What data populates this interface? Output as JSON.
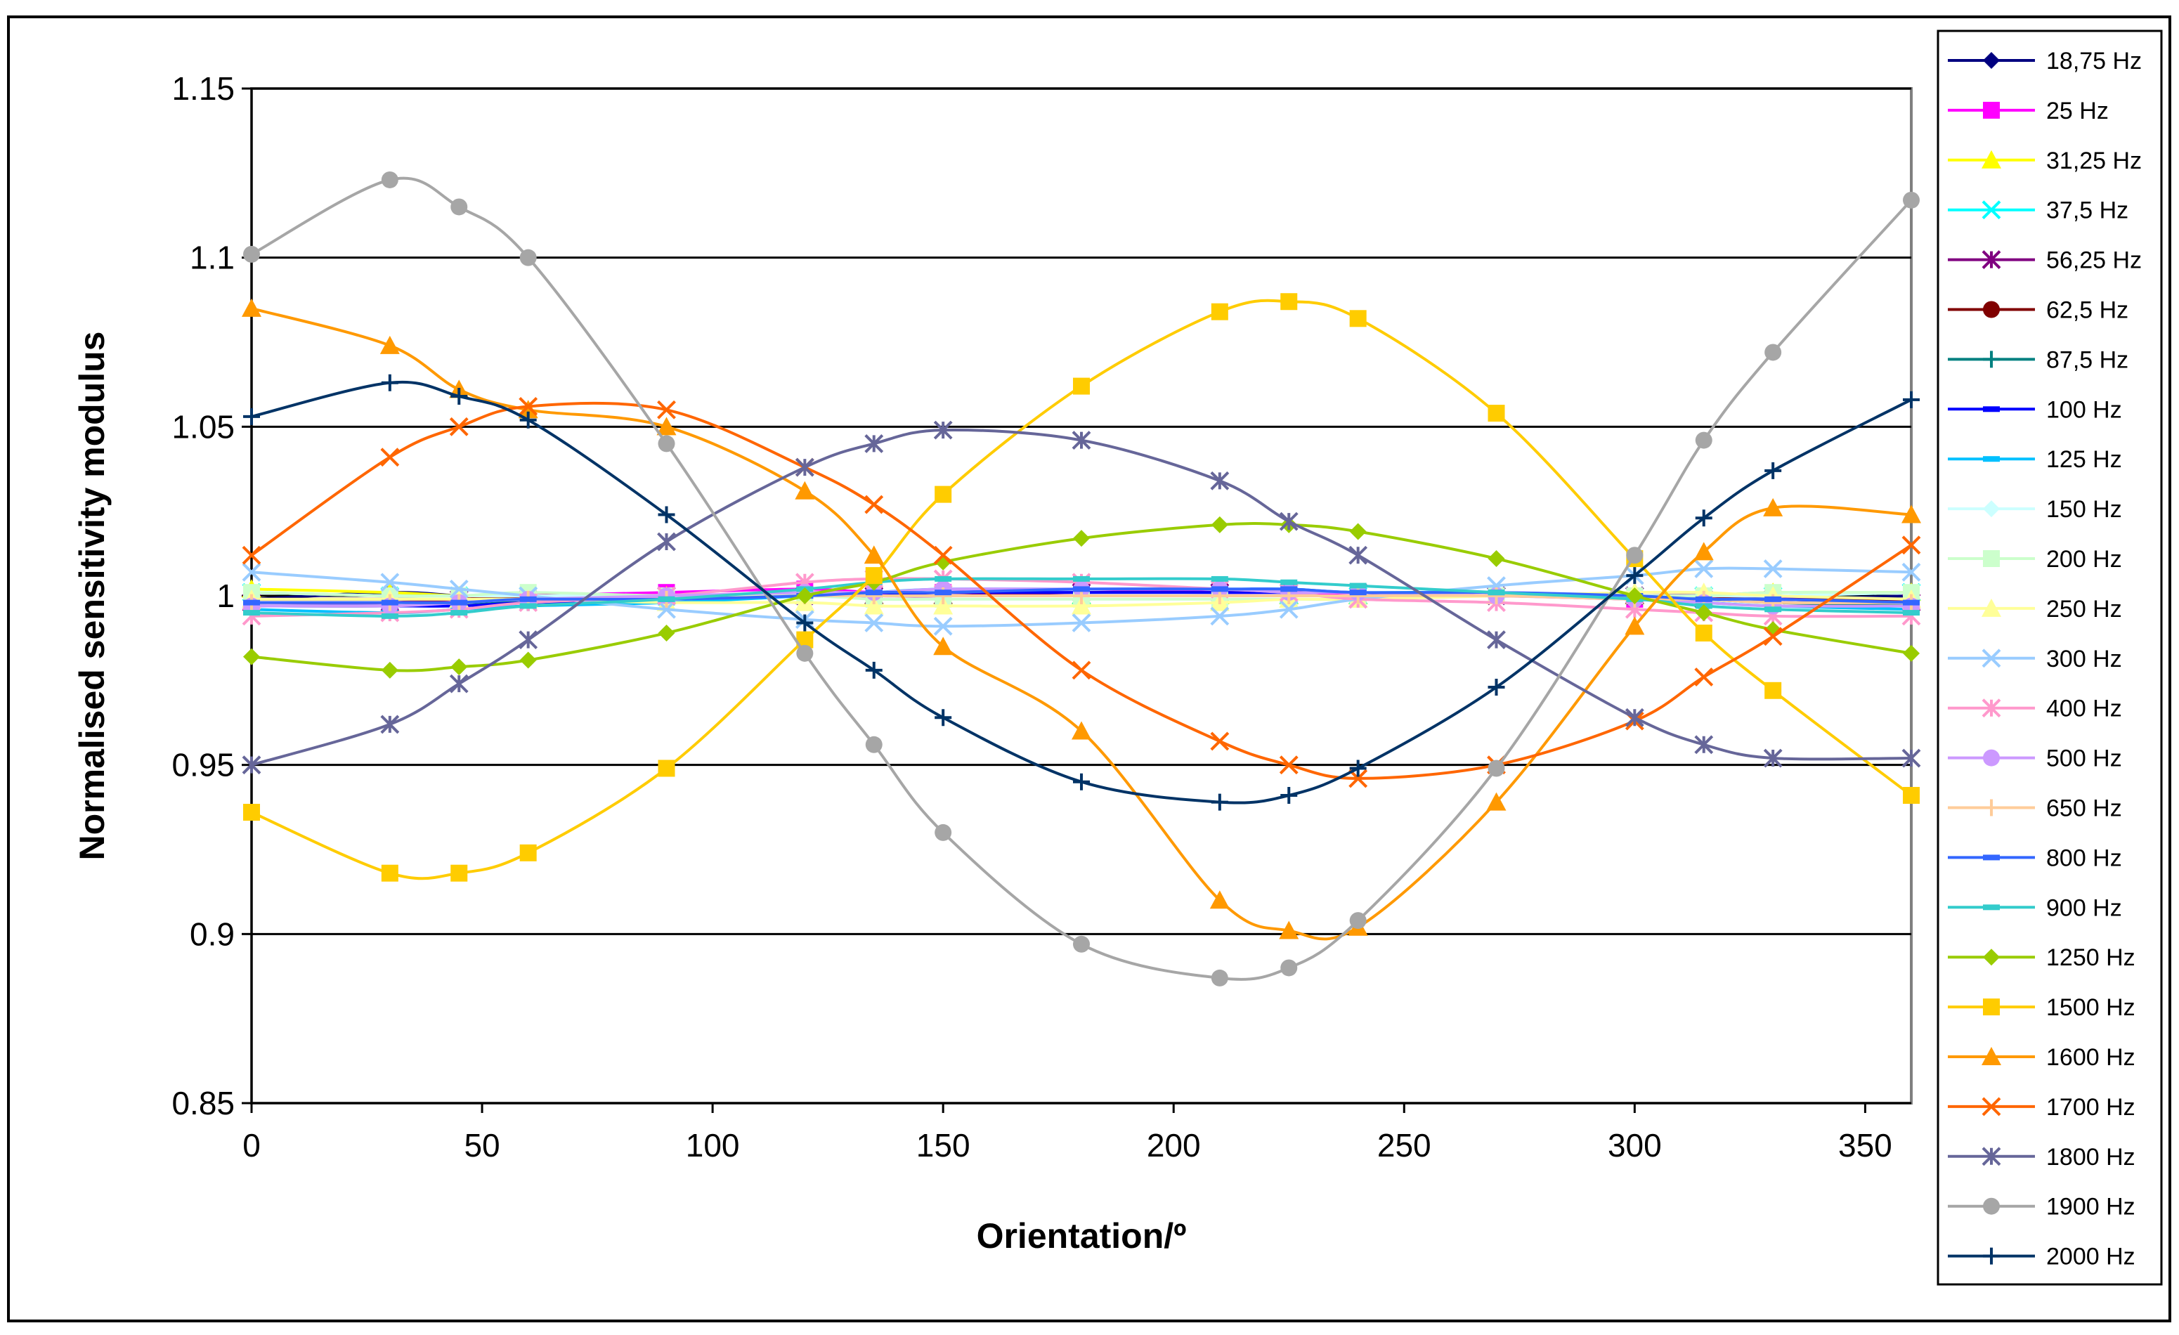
{
  "chart_data": {
    "type": "line",
    "title": "",
    "xlabel": "Orientation/º",
    "ylabel": "Normalised sensitivity modulus",
    "xlim": [
      0,
      360
    ],
    "ylim": [
      0.85,
      1.15
    ],
    "xticks": [
      0,
      50,
      100,
      150,
      200,
      250,
      300,
      350
    ],
    "yticks": [
      0.85,
      0.9,
      0.95,
      1,
      1.05,
      1.1,
      1.15
    ],
    "xtick_labels": [
      "0",
      "50",
      "100",
      "150",
      "200",
      "250",
      "300",
      "350"
    ],
    "ytick_labels": [
      "0.85",
      "0.9",
      "0.95",
      "1",
      "1.05",
      "1.1",
      "1.15"
    ],
    "grid": "horizontal",
    "legend_position": "right",
    "x": [
      0,
      30,
      45,
      60,
      90,
      120,
      135,
      150,
      180,
      210,
      225,
      240,
      270,
      300,
      315,
      330,
      360
    ],
    "series": [
      {
        "name": "18,75 Hz",
        "color": "#000080",
        "marker": "diamond",
        "values": [
          0.999,
          1.001,
          1.0,
          0.999,
          1.0,
          1.0,
          1.0,
          1.0,
          1.0,
          1.0,
          1.0,
          1.0,
          1.0,
          1.0,
          1.0,
          0.999,
          1.0
        ]
      },
      {
        "name": "25 Hz",
        "color": "#FF00FF",
        "marker": "square",
        "values": [
          0.998,
          0.998,
          0.999,
          1.0,
          1.001,
          1.002,
          1.001,
          1.001,
          1.002,
          1.001,
          1.001,
          1.0,
          1.0,
          0.999,
          0.999,
          0.999,
          0.999
        ]
      },
      {
        "name": "31,25 Hz",
        "color": "#FFFF00",
        "marker": "triangle",
        "values": [
          1.002,
          1.001,
          1.0,
          1.0,
          1.0,
          1.0,
          1.0,
          1.0,
          1.0,
          1.0,
          1.0,
          1.0,
          1.0,
          1.0,
          1.0,
          1.001,
          1.001
        ]
      },
      {
        "name": "37,5 Hz",
        "color": "#00FFFF",
        "marker": "x",
        "values": [
          1.001,
          1.0,
          1.0,
          1.0,
          1.0,
          1.0,
          1.0,
          1.0,
          1.0,
          1.0,
          1.0,
          1.0,
          1.0,
          1.0,
          1.0,
          1.0,
          1.001
        ]
      },
      {
        "name": "56,25 Hz",
        "color": "#800080",
        "marker": "star",
        "values": [
          0.998,
          0.998,
          0.999,
          0.999,
          1.0,
          1.0,
          1.0,
          1.0,
          1.001,
          1.001,
          1.001,
          1.001,
          1.0,
          1.0,
          0.999,
          0.999,
          0.998
        ]
      },
      {
        "name": "62,5 Hz",
        "color": "#800000",
        "marker": "circle",
        "values": [
          0.999,
          0.999,
          0.999,
          1.0,
          1.0,
          1.0,
          1.0,
          1.0,
          1.0,
          1.0,
          1.0,
          1.0,
          1.0,
          1.0,
          1.0,
          0.999,
          0.999
        ]
      },
      {
        "name": "87,5 Hz",
        "color": "#008080",
        "marker": "plus",
        "values": [
          0.997,
          0.997,
          0.998,
          0.998,
          0.999,
          1.0,
          1.0,
          1.0,
          1.0,
          1.0,
          1.0,
          1.0,
          1.0,
          1.0,
          0.999,
          0.998,
          0.997
        ]
      },
      {
        "name": "100 Hz",
        "color": "#0000FF",
        "marker": "dash",
        "values": [
          0.997,
          0.997,
          0.997,
          0.998,
          0.999,
          1.0,
          1.0,
          1.001,
          1.001,
          1.001,
          1.001,
          1.001,
          1.0,
          1.0,
          0.999,
          0.999,
          0.998
        ]
      },
      {
        "name": "125 Hz",
        "color": "#00C0FF",
        "marker": "dash",
        "values": [
          0.996,
          0.995,
          0.996,
          0.997,
          0.998,
          1.0,
          1.001,
          1.002,
          1.002,
          1.002,
          1.002,
          1.001,
          1.001,
          0.999,
          0.998,
          0.997,
          0.996
        ]
      },
      {
        "name": "150 Hz",
        "color": "#CCFFFF",
        "marker": "diamond",
        "values": [
          1.001,
          1.0,
          1.0,
          1.0,
          1.0,
          1.0,
          1.0,
          1.0,
          1.0,
          1.0,
          1.0,
          1.0,
          1.0,
          1.0,
          1.0,
          1.0,
          1.001
        ]
      },
      {
        "name": "200 Hz",
        "color": "#CCFFCC",
        "marker": "square",
        "values": [
          1.001,
          1.0,
          1.0,
          1.001,
          1.0,
          1.0,
          0.999,
          0.999,
          0.999,
          0.999,
          0.999,
          0.999,
          1.0,
          1.0,
          1.0,
          1.001,
          1.001
        ]
      },
      {
        "name": "250 Hz",
        "color": "#FFFF99",
        "marker": "triangle",
        "values": [
          0.999,
          0.999,
          0.999,
          0.999,
          0.998,
          0.998,
          0.997,
          0.997,
          0.997,
          0.998,
          0.999,
          0.999,
          1.0,
          1.001,
          1.001,
          1.0,
          0.999
        ]
      },
      {
        "name": "300 Hz",
        "color": "#99CCFF",
        "marker": "x",
        "values": [
          1.007,
          1.004,
          1.002,
          1.0,
          0.996,
          0.993,
          0.992,
          0.991,
          0.992,
          0.994,
          0.996,
          0.999,
          1.003,
          1.006,
          1.008,
          1.008,
          1.007
        ]
      },
      {
        "name": "400 Hz",
        "color": "#FF99CC",
        "marker": "star",
        "values": [
          0.994,
          0.995,
          0.996,
          0.998,
          1.0,
          1.004,
          1.005,
          1.005,
          1.004,
          1.002,
          1.001,
          0.999,
          0.998,
          0.996,
          0.995,
          0.994,
          0.994
        ]
      },
      {
        "name": "500 Hz",
        "color": "#CC99FF",
        "marker": "circle",
        "values": [
          0.997,
          0.997,
          0.998,
          0.999,
          1.0,
          1.001,
          1.001,
          1.002,
          1.002,
          1.002,
          1.001,
          1.001,
          1.0,
          0.999,
          0.998,
          0.997,
          0.997
        ]
      },
      {
        "name": "650 Hz",
        "color": "#FFCC99",
        "marker": "plus",
        "values": [
          0.998,
          0.998,
          0.998,
          0.999,
          0.999,
          1.0,
          1.0,
          1.0,
          1.0,
          1.0,
          1.0,
          1.0,
          1.0,
          0.999,
          0.999,
          0.998,
          0.998
        ]
      },
      {
        "name": "800 Hz",
        "color": "#3366FF",
        "marker": "dash",
        "values": [
          0.998,
          0.998,
          0.998,
          0.999,
          0.999,
          1.0,
          1.001,
          1.001,
          1.002,
          1.002,
          1.002,
          1.001,
          1.001,
          1.0,
          0.999,
          0.999,
          0.998
        ]
      },
      {
        "name": "900 Hz",
        "color": "#33CCCC",
        "marker": "dash",
        "values": [
          0.995,
          0.994,
          0.995,
          0.997,
          0.999,
          1.002,
          1.004,
          1.005,
          1.005,
          1.005,
          1.004,
          1.003,
          1.001,
          0.999,
          0.997,
          0.996,
          0.995
        ]
      },
      {
        "name": "1250 Hz",
        "color": "#99CC00",
        "marker": "diamond",
        "values": [
          0.982,
          0.978,
          0.979,
          0.981,
          0.989,
          1.0,
          1.004,
          1.01,
          1.017,
          1.021,
          1.021,
          1.019,
          1.011,
          1.0,
          0.995,
          0.99,
          0.983
        ]
      },
      {
        "name": "1500 Hz",
        "color": "#FFCC00",
        "marker": "square",
        "values": [
          0.936,
          0.918,
          0.918,
          0.924,
          0.949,
          0.987,
          1.006,
          1.03,
          1.062,
          1.084,
          1.087,
          1.082,
          1.054,
          1.011,
          0.989,
          0.972,
          0.941
        ]
      },
      {
        "name": "1600 Hz",
        "color": "#FF9900",
        "marker": "triangle",
        "values": [
          1.085,
          1.074,
          1.061,
          1.055,
          1.05,
          1.031,
          1.012,
          0.985,
          0.96,
          0.91,
          0.901,
          0.902,
          0.939,
          0.991,
          1.013,
          1.026,
          1.024
        ]
      },
      {
        "name": "1700 Hz",
        "color": "#FF6600",
        "marker": "x",
        "values": [
          1.012,
          1.041,
          1.05,
          1.056,
          1.055,
          1.038,
          1.027,
          1.012,
          0.978,
          0.957,
          0.95,
          0.946,
          0.95,
          0.963,
          0.976,
          0.988,
          1.015
        ]
      },
      {
        "name": "1800 Hz",
        "color": "#666699",
        "marker": "star",
        "values": [
          0.95,
          0.962,
          0.974,
          0.987,
          1.016,
          1.038,
          1.045,
          1.049,
          1.046,
          1.034,
          1.022,
          1.012,
          0.987,
          0.964,
          0.956,
          0.952,
          0.952
        ]
      },
      {
        "name": "1900 Hz",
        "color": "#A6A6A6",
        "marker": "circle",
        "values": [
          1.101,
          1.123,
          1.115,
          1.1,
          1.045,
          0.983,
          0.956,
          0.93,
          0.897,
          0.887,
          0.89,
          0.904,
          0.949,
          1.012,
          1.046,
          1.072,
          1.117
        ]
      },
      {
        "name": "2000 Hz",
        "color": "#003366",
        "marker": "plus",
        "values": [
          1.053,
          1.063,
          1.059,
          1.052,
          1.024,
          0.992,
          0.978,
          0.964,
          0.945,
          0.939,
          0.941,
          0.949,
          0.973,
          1.006,
          1.023,
          1.037,
          1.058
        ]
      }
    ]
  }
}
